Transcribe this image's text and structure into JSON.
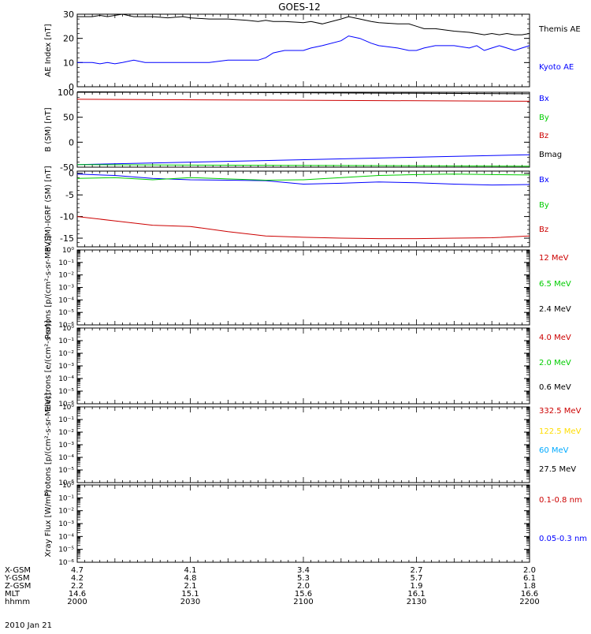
{
  "title": "GOES-12",
  "date_label": "2010 Jan 21",
  "ephemeris": {
    "rows": [
      {
        "label": "X-GSM",
        "values": [
          "4.7",
          "4.1",
          "3.4",
          "2.7",
          "2.0"
        ]
      },
      {
        "label": "Y-GSM",
        "values": [
          "4.2",
          "4.8",
          "5.3",
          "5.7",
          "6.1"
        ]
      },
      {
        "label": "Z-GSM",
        "values": [
          "2.2",
          "2.1",
          "2.0",
          "1.9",
          "1.8"
        ]
      },
      {
        "label": "MLT",
        "values": [
          "14.6",
          "15.1",
          "15.6",
          "16.1",
          "16.6"
        ]
      },
      {
        "label": "hhmm",
        "values": [
          "2000",
          "2030",
          "2100",
          "2130",
          "2200"
        ]
      }
    ]
  },
  "chart_data": [
    {
      "type": "line",
      "ylabel": "AE Index [nT]",
      "ylim": [
        0,
        30
      ],
      "yticks": [
        "0",
        "10",
        "20",
        "30"
      ],
      "x": [
        0,
        4,
        6,
        8,
        10,
        12,
        15,
        18,
        20,
        24,
        28,
        30,
        35,
        40,
        45,
        48,
        50,
        52,
        55,
        60,
        62,
        65,
        70,
        72,
        75,
        78,
        80,
        85,
        88,
        90,
        92,
        95,
        100,
        104,
        106,
        108,
        110,
        112,
        114,
        116,
        118,
        120
      ],
      "series": [
        {
          "name": "Themis AE",
          "color": "#000000",
          "values": [
            29,
            29,
            29.5,
            29,
            29.5,
            30,
            29,
            29,
            29,
            28.5,
            29,
            28.5,
            28,
            28,
            27.5,
            27,
            27.5,
            27,
            27,
            26.5,
            27,
            26,
            28,
            29,
            28,
            27,
            26.5,
            26,
            26,
            25,
            24,
            24,
            23,
            22.5,
            22,
            21.5,
            22,
            21.5,
            22,
            21.5,
            21.5,
            22
          ]
        },
        {
          "name": "Kyoto AE",
          "color": "#0000ff",
          "values": [
            10,
            10,
            9.5,
            10,
            9.5,
            10,
            11,
            10,
            10,
            10,
            10,
            10,
            10,
            11,
            11,
            11,
            12,
            14,
            15,
            15,
            16,
            17,
            19,
            21,
            20,
            18,
            17,
            16,
            15,
            15,
            16,
            17,
            17,
            16,
            17,
            15,
            16,
            17,
            16,
            15,
            16,
            17
          ]
        }
      ]
    },
    {
      "type": "line",
      "ylabel": "B (SM) [nT]",
      "ylim": [
        -50,
        100
      ],
      "yticks": [
        "-50",
        "0",
        "50",
        "100"
      ],
      "x": [
        0,
        120
      ],
      "series": [
        {
          "name": "Bx",
          "color": "#0000ff",
          "values": [
            -45,
            -25
          ]
        },
        {
          "name": "By",
          "color": "#00cc00",
          "values": [
            -45,
            -48
          ]
        },
        {
          "name": "Bz",
          "color": "#cc0000",
          "values": [
            86,
            82
          ]
        },
        {
          "name": "Bmag",
          "color": "#000000",
          "values": [
            101,
            97
          ]
        }
      ]
    },
    {
      "type": "line",
      "ylabel": "B (SM)-IGRF (SM) [nT]",
      "ylim": [
        -17,
        0.5
      ],
      "yticks": [
        "-15",
        "-10",
        "-5",
        "0"
      ],
      "x": [
        0,
        10,
        20,
        30,
        40,
        50,
        60,
        70,
        80,
        90,
        100,
        110,
        120
      ],
      "series": [
        {
          "name": "Bx",
          "color": "#0000ff",
          "values": [
            -0.2,
            -0.5,
            -1.2,
            -1.5,
            -1.6,
            -1.7,
            -2.5,
            -2.3,
            -2.0,
            -2.2,
            -2.5,
            -2.7,
            -2.6
          ]
        },
        {
          "name": "By",
          "color": "#00cc00",
          "values": [
            -1.2,
            -1.0,
            -1.5,
            -1.0,
            -1.3,
            -1.6,
            -1.5,
            -1.0,
            -0.5,
            -0.3,
            -0.2,
            -0.3,
            -0.4
          ]
        },
        {
          "name": "Bz",
          "color": "#cc0000",
          "values": [
            -10,
            -11,
            -12,
            -12.3,
            -13.5,
            -14.5,
            -14.8,
            -15.0,
            -15.1,
            -15.1,
            -15.0,
            -14.9,
            -14.5
          ]
        }
      ]
    },
    {
      "type": "line",
      "ylabel": "Protons [p/(cm²-s-sr-MeV)]",
      "scale": "log",
      "ylim": [
        1e-06,
        1
      ],
      "yticks": [
        "10⁻⁶",
        "10⁻⁵",
        "10⁻⁴",
        "10⁻³",
        "10⁻²",
        "10⁻¹",
        "10⁰"
      ],
      "series": [
        {
          "name": "12 MeV",
          "color": "#cc0000"
        },
        {
          "name": "6.5 MeV",
          "color": "#00cc00"
        },
        {
          "name": "2.4 MeV",
          "color": "#000000"
        }
      ]
    },
    {
      "type": "line",
      "ylabel": "Electrons [e/(cm²-s-sr)]",
      "scale": "log",
      "ylim": [
        1e-06,
        1
      ],
      "yticks": [
        "10⁻⁶",
        "10⁻⁵",
        "10⁻⁴",
        "10⁻³",
        "10⁻²",
        "10⁻¹",
        "10⁰"
      ],
      "series": [
        {
          "name": "4.0 MeV",
          "color": "#cc0000"
        },
        {
          "name": "2.0 MeV",
          "color": "#00cc00"
        },
        {
          "name": "0.6 MeV",
          "color": "#000000"
        }
      ]
    },
    {
      "type": "line",
      "ylabel": "Protons [p/(cm²-s-sr-MeV)]",
      "scale": "log",
      "ylim": [
        1e-06,
        1
      ],
      "yticks": [
        "10⁻⁶",
        "10⁻⁵",
        "10⁻⁴",
        "10⁻³",
        "10⁻²",
        "10⁻¹",
        "10⁰"
      ],
      "series": [
        {
          "name": "332.5 MeV",
          "color": "#cc0000"
        },
        {
          "name": "122.5 MeV",
          "color": "#ffdd00"
        },
        {
          "name": "60 MeV",
          "color": "#00aaff"
        },
        {
          "name": "27.5 MeV",
          "color": "#000000"
        }
      ]
    },
    {
      "type": "line",
      "ylabel": "Xray Flux [W/m²]",
      "scale": "log",
      "ylim": [
        1e-06,
        1
      ],
      "yticks": [
        "10⁻⁶",
        "10⁻⁵",
        "10⁻⁴",
        "10⁻³",
        "10⁻²",
        "10⁻¹",
        "10⁰"
      ],
      "series": [
        {
          "name": "0.1-0.8 nm",
          "color": "#cc0000"
        },
        {
          "name": "0.05-0.3 nm",
          "color": "#0000ff"
        }
      ]
    }
  ]
}
